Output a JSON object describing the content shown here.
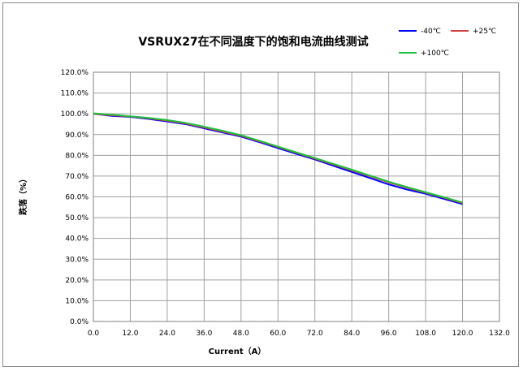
{
  "chart_data": {
    "type": "line",
    "title": "VSRUX27在不同温度下的饱和电流曲线测试",
    "xlabel": "Current（A）",
    "ylabel": "跌落（%）",
    "xlim": [
      0,
      132
    ],
    "ylim": [
      0,
      120
    ],
    "xticks": [
      "0.0",
      "12.0",
      "24.0",
      "36.0",
      "48.0",
      "60.0",
      "72.0",
      "84.0",
      "96.0",
      "108.0",
      "120.0",
      "132.0"
    ],
    "yticks": [
      "0.0%",
      "10.0%",
      "20.0%",
      "30.0%",
      "40.0%",
      "50.0%",
      "60.0%",
      "70.0%",
      "80.0%",
      "90.0%",
      "100.0%",
      "110.0%",
      "120.0%"
    ],
    "grid": true,
    "legend_position": "top-right",
    "series": [
      {
        "name": "-40℃",
        "color": "#0000ff",
        "x": [
          0,
          6,
          12,
          18,
          24,
          30,
          36,
          42,
          48,
          54,
          60,
          66,
          72,
          78,
          84,
          90,
          96,
          102,
          108,
          114,
          120
        ],
        "y": [
          100,
          99,
          98.5,
          97.5,
          96.3,
          95,
          93,
          91,
          89,
          86.3,
          83.5,
          80.7,
          78,
          75,
          72,
          69,
          66,
          63.5,
          61.5,
          59,
          56.5
        ]
      },
      {
        "name": "+25℃",
        "color": "#d04040",
        "x": [
          0,
          6,
          12,
          18,
          24,
          30,
          36,
          42,
          48,
          54,
          60,
          66,
          72,
          78,
          84,
          90,
          96,
          102,
          108,
          114,
          120
        ],
        "y": [
          100,
          99.3,
          98.7,
          97.8,
          96.7,
          95.3,
          93.4,
          91.4,
          89.4,
          86.7,
          84,
          81.2,
          78.4,
          75.6,
          72.8,
          69.9,
          67,
          64.4,
          62,
          59.6,
          57
        ]
      },
      {
        "name": "+100℃",
        "color": "#1ec040",
        "x": [
          0,
          6,
          12,
          18,
          24,
          30,
          36,
          42,
          48,
          54,
          60,
          66,
          72,
          78,
          84,
          90,
          96,
          102,
          108,
          114,
          120
        ],
        "y": [
          100.2,
          99.6,
          98.8,
          98,
          97,
          95.6,
          93.8,
          91.8,
          89.7,
          87,
          84.2,
          81.4,
          78.7,
          75.9,
          73.1,
          70.2,
          67.3,
          64.7,
          62.2,
          59.8,
          57.3
        ]
      }
    ]
  }
}
